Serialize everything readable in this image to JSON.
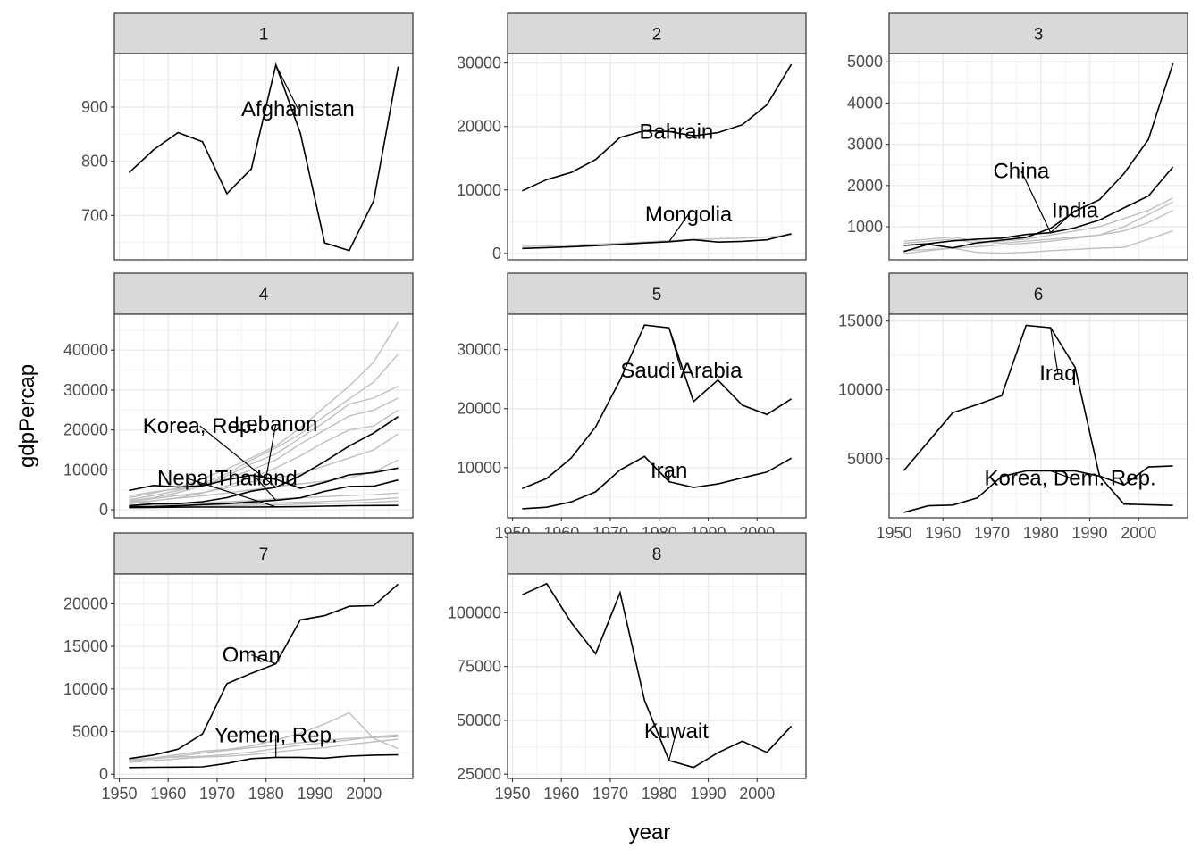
{
  "chart_data": {
    "type": "line",
    "facet_by": "cluster",
    "xlabel": "year",
    "ylabel": "gdpPercap",
    "grid": true,
    "colors": {
      "highlight": "#000000",
      "background": "#bfbfbf",
      "strip": "#d9d9d9"
    },
    "x_ticks": [
      1950,
      1960,
      1970,
      1980,
      1990,
      2000
    ],
    "years": [
      1952,
      1957,
      1962,
      1967,
      1972,
      1977,
      1982,
      1987,
      1992,
      1997,
      2002,
      2007
    ],
    "panels": [
      {
        "strip": "1",
        "xlim": [
          1949,
          2010
        ],
        "ylim": [
          618,
          999
        ],
        "y_ticks": [
          {
            "v": 700,
            "t": "700"
          },
          {
            "v": 800,
            "t": "800"
          },
          {
            "v": 900,
            "t": "900"
          }
        ],
        "series": [
          {
            "name": "Afghanistan",
            "highlight": true,
            "values": [
              779,
              821,
              853,
              836,
              740,
              786,
              978,
              852,
              649,
              635,
              727,
              975
            ]
          }
        ],
        "labels": [
          {
            "text": "Afghanistan",
            "lx": 1986.5,
            "ly": 897,
            "ax": 1982,
            "ay": 978
          }
        ]
      },
      {
        "strip": "2",
        "xlim": [
          1949,
          2010
        ],
        "ylim": [
          -1000,
          31500
        ],
        "y_ticks": [
          {
            "v": 0,
            "t": "0"
          },
          {
            "v": 10000,
            "t": "10000"
          },
          {
            "v": 20000,
            "t": "20000"
          },
          {
            "v": 30000,
            "t": "30000"
          }
        ],
        "series": [
          {
            "name": "Bahrain",
            "highlight": true,
            "values": [
              9867,
              11636,
              12753,
              14805,
              18269,
              19340,
              19211,
              18524,
              19036,
              20292,
              23404,
              29796
            ]
          },
          {
            "name": "Mongolia",
            "highlight": true,
            "values": [
              787,
              912,
              1056,
              1226,
              1421,
              1648,
              1842,
              2153,
              1785,
              1902,
              2141,
              3096
            ]
          },
          {
            "name": "",
            "highlight": false,
            "values": [
              1100,
              1200,
              1300,
              1450,
              1600,
              1800,
              2000,
              2200,
              2300,
              2400,
              2600,
              2900
            ]
          }
        ],
        "labels": [
          {
            "text": "Bahrain",
            "lx": 1983.5,
            "ly": 19200,
            "ax": 1981,
            "ay": 19211
          },
          {
            "text": "Mongolia",
            "lx": 1986,
            "ly": 6200,
            "ax": 1982,
            "ay": 1842
          }
        ]
      },
      {
        "strip": "3",
        "xlim": [
          1949,
          2010
        ],
        "ylim": [
          200,
          5200
        ],
        "y_ticks": [
          {
            "v": 1000,
            "t": "1000"
          },
          {
            "v": 2000,
            "t": "2000"
          },
          {
            "v": 3000,
            "t": "3000"
          },
          {
            "v": 4000,
            "t": "4000"
          },
          {
            "v": 5000,
            "t": "5000"
          }
        ],
        "series": [
          {
            "name": "China",
            "highlight": true,
            "values": [
              400,
              575,
              487,
              612,
              677,
              741,
              962,
              1379,
              1656,
              2289,
              3119,
              4959
            ]
          },
          {
            "name": "India",
            "highlight": true,
            "values": [
              547,
              590,
              658,
              701,
              724,
              813,
              856,
              976,
              1164,
              1458,
              1747,
              2452
            ]
          },
          {
            "name": "",
            "highlight": false,
            "values": [
              600,
              650,
              700,
              600,
              650,
              700,
              800,
              900,
              1000,
              1200,
              1400,
              1700
            ]
          },
          {
            "name": "",
            "highlight": false,
            "values": [
              350,
              420,
              480,
              520,
              560,
              600,
              650,
              720,
              800,
              900,
              1100,
              1400
            ]
          },
          {
            "name": "",
            "highlight": false,
            "values": [
              650,
              700,
              750,
              650,
              600,
              650,
              700,
              750,
              800,
              1000,
              1300,
              1600
            ]
          },
          {
            "name": "",
            "highlight": false,
            "values": [
              420,
              450,
              480,
              380,
              360,
              380,
              420,
              450,
              480,
              500,
              700,
              900
            ]
          }
        ],
        "labels": [
          {
            "text": "China",
            "lx": 1976,
            "ly": 2350,
            "ax": 1982,
            "ay": 860
          },
          {
            "text": "India",
            "lx": 1987,
            "ly": 1400,
            "ax": 1982,
            "ay": 856
          }
        ]
      },
      {
        "strip": "4",
        "xlim": [
          1949,
          2010
        ],
        "ylim": [
          -2000,
          49000
        ],
        "y_ticks": [
          {
            "v": 0,
            "t": "0"
          },
          {
            "v": 10000,
            "t": "10000"
          },
          {
            "v": 20000,
            "t": "20000"
          },
          {
            "v": 30000,
            "t": "30000"
          },
          {
            "v": 40000,
            "t": "40000"
          }
        ],
        "series": [
          {
            "name": "Korea, Rep.",
            "highlight": true,
            "values": [
              1031,
              1488,
              1536,
              2029,
              3031,
              4657,
              5623,
              8533,
              12104,
              15994,
              19234,
              23348
            ]
          },
          {
            "name": "Lebanon",
            "highlight": true,
            "values": [
              4835,
              6090,
              5717,
              6006,
              7486,
              8659,
              7641,
              5377,
              6891,
              8755,
              9314,
              10461
            ]
          },
          {
            "name": "Nepal",
            "highlight": true,
            "values": [
              546,
              598,
              652,
              676,
              674,
              695,
              718,
              775,
              897,
              1011,
              1057,
              1091
            ]
          },
          {
            "name": "Thailand",
            "highlight": true,
            "values": [
              758,
              794,
              1002,
              1296,
              1524,
              1962,
              2393,
              2983,
              4617,
              5853,
              5913,
              7458
            ]
          },
          {
            "name": "",
            "highlight": false,
            "values": [
              3000,
              4200,
              5500,
              7800,
              10200,
              13000,
              16000,
              20500,
              25800,
              31000,
              37000,
              47000
            ]
          },
          {
            "name": "",
            "highlight": false,
            "values": [
              2500,
              3600,
              4800,
              6500,
              9000,
              12500,
              15500,
              19000,
              23500,
              27800,
              32000,
              39000
            ]
          },
          {
            "name": "",
            "highlight": false,
            "values": [
              2200,
              3000,
              4300,
              6000,
              8500,
              11500,
              14000,
              18000,
              22000,
              26500,
              28000,
              31000
            ]
          },
          {
            "name": "",
            "highlight": false,
            "values": [
              3500,
              4500,
              5200,
              6200,
              7800,
              10000,
              12500,
              16500,
              20000,
              23500,
              25000,
              28000
            ]
          },
          {
            "name": "",
            "highlight": false,
            "values": [
              1500,
              2200,
              3000,
              4200,
              6000,
              8000,
              10500,
              13500,
              17000,
              20000,
              21000,
              25000
            ]
          },
          {
            "name": "",
            "highlight": false,
            "values": [
              2000,
              2800,
              3600,
              4300,
              5500,
              7000,
              8000,
              9000,
              11000,
              13000,
              15000,
              19000
            ]
          },
          {
            "name": "",
            "highlight": false,
            "values": [
              1800,
              2300,
              2900,
              3500,
              4200,
              5000,
              5800,
              6500,
              7200,
              8000,
              9500,
              12500
            ]
          },
          {
            "name": "",
            "highlight": false,
            "values": [
              900,
              1100,
              1400,
              1700,
              2000,
              2300,
              2700,
              3000,
              3300,
              3600,
              3800,
              4200
            ]
          },
          {
            "name": "",
            "highlight": false,
            "values": [
              700,
              850,
              1000,
              1150,
              1350,
              1500,
              1700,
              1900,
              2100,
              2300,
              2600,
              3000
            ]
          },
          {
            "name": "",
            "highlight": false,
            "values": [
              500,
              600,
              700,
              800,
              950,
              1100,
              1250,
              1400,
              1550,
              1700,
              1900,
              2200
            ]
          }
        ],
        "labels": [
          {
            "text": "Korea, Rep.",
            "lx": 1966.5,
            "ly": 21000,
            "ax": 1982,
            "ay": 5623
          },
          {
            "text": "Lebanon",
            "lx": 1982,
            "ly": 21500,
            "ax": 1980,
            "ay": 8000
          },
          {
            "text": "Nepal",
            "lx": 1963.5,
            "ly": 8000,
            "ax": 1982,
            "ay": 718
          },
          {
            "text": "Thailand",
            "lx": 1978,
            "ly": 8000,
            "ax": 1982,
            "ay": 2393
          }
        ]
      },
      {
        "strip": "5",
        "xlim": [
          1949,
          2010
        ],
        "ylim": [
          1500,
          36000
        ],
        "y_ticks": [
          {
            "v": 10000,
            "t": "10000"
          },
          {
            "v": 20000,
            "t": "20000"
          },
          {
            "v": 30000,
            "t": "30000"
          }
        ],
        "series": [
          {
            "name": "Saudi Arabia",
            "highlight": true,
            "values": [
              6460,
              8157,
              11626,
              16903,
              24837,
              34168,
              33693,
              21199,
              24841,
              20586,
              19014,
              21655
            ]
          },
          {
            "name": "Iran",
            "highlight": true,
            "values": [
              3035,
              3291,
              4187,
              5907,
              9613,
              11889,
              7608,
              6643,
              7235,
              8264,
              9241,
              11606
            ]
          }
        ],
        "labels": [
          {
            "text": "Saudi Arabia",
            "lx": 1984.5,
            "ly": 26500,
            "ax": 1982,
            "ay": 33693
          },
          {
            "text": "Iran",
            "lx": 1982,
            "ly": 9500,
            "ax": 1982,
            "ay": 7608
          }
        ]
      },
      {
        "strip": "6",
        "xlim": [
          1949,
          2010
        ],
        "ylim": [
          700,
          15500
        ],
        "y_ticks": [
          {
            "v": 5000,
            "t": "5000"
          },
          {
            "v": 10000,
            "t": "10000"
          },
          {
            "v": 15000,
            "t": "15000"
          }
        ],
        "series": [
          {
            "name": "Iraq",
            "highlight": true,
            "values": [
              4130,
              6229,
              8342,
              8931,
              9576,
              14688,
              14518,
              11644,
              3746,
              3077,
              4391,
              4471
            ]
          },
          {
            "name": "Korea, Dem. Rep.",
            "highlight": true,
            "values": [
              1088,
              1571,
              1622,
              2144,
              3702,
              4106,
              4107,
              4106,
              3727,
              1691,
              1647,
              1593
            ]
          }
        ],
        "labels": [
          {
            "text": "Iraq",
            "lx": 1983.5,
            "ly": 11200,
            "ax": 1982,
            "ay": 14518
          },
          {
            "text": "Korea, Dem. Rep.",
            "lx": 1986,
            "ly": 3600,
            "ax": 1982,
            "ay": 4107
          }
        ]
      },
      {
        "strip": "7",
        "xlim": [
          1949,
          2010
        ],
        "ylim": [
          -500,
          23500
        ],
        "y_ticks": [
          {
            "v": 0,
            "t": "0"
          },
          {
            "v": 5000,
            "t": "5000"
          },
          {
            "v": 10000,
            "t": "10000"
          },
          {
            "v": 15000,
            "t": "15000"
          },
          {
            "v": 20000,
            "t": "20000"
          }
        ],
        "series": [
          {
            "name": "Oman",
            "highlight": true,
            "values": [
              1828,
              2243,
              2925,
              4721,
              10618,
              11849,
              12955,
              18115,
              18617,
              19702,
              19775,
              22316
            ]
          },
          {
            "name": "Yemen, Rep.",
            "highlight": true,
            "values": [
              782,
              805,
              826,
              862,
              1265,
              1830,
              1978,
              1972,
              1879,
              2117,
              2235,
              2281
            ]
          },
          {
            "name": "",
            "highlight": false,
            "values": [
              1600,
              1900,
              2300,
              2700,
              2900,
              3300,
              4000,
              4800,
              5900,
              7200,
              4200,
              3000
            ]
          },
          {
            "name": "",
            "highlight": false,
            "values": [
              1500,
              1800,
              2100,
              2500,
              2800,
              3100,
              3400,
              3700,
              4000,
              4200,
              4300,
              4400
            ]
          },
          {
            "name": "",
            "highlight": false,
            "values": [
              1700,
              1900,
              2000,
              2100,
              2300,
              2600,
              3000,
              3400,
              3700,
              4000,
              4400,
              4600
            ]
          },
          {
            "name": "",
            "highlight": false,
            "values": [
              1400,
              1600,
              1800,
              2000,
              2100,
              2300,
              2600,
              2900,
              3100,
              3500,
              3800,
              4100
            ]
          }
        ],
        "labels": [
          {
            "text": "Oman",
            "lx": 1977,
            "ly": 14000,
            "ax": 1982,
            "ay": 12955
          },
          {
            "text": "Yemen, Rep.",
            "lx": 1982,
            "ly": 4600,
            "ax": 1982,
            "ay": 1978
          }
        ]
      },
      {
        "strip": "8",
        "xlim": [
          1949,
          2010
        ],
        "ylim": [
          23000,
          118000
        ],
        "y_ticks": [
          {
            "v": 25000,
            "t": "25000"
          },
          {
            "v": 50000,
            "t": "50000"
          },
          {
            "v": 75000,
            "t": "75000"
          },
          {
            "v": 100000,
            "t": "100000"
          }
        ],
        "series": [
          {
            "name": "Kuwait",
            "highlight": true,
            "values": [
              108382,
              113523,
              95458,
              80895,
              109348,
              59265,
              31354,
              28118,
              34933,
              40301,
              35110,
              47307
            ]
          }
        ],
        "labels": [
          {
            "text": "Kuwait",
            "lx": 1983.5,
            "ly": 45000,
            "ax": 1982,
            "ay": 31354
          }
        ]
      }
    ]
  }
}
